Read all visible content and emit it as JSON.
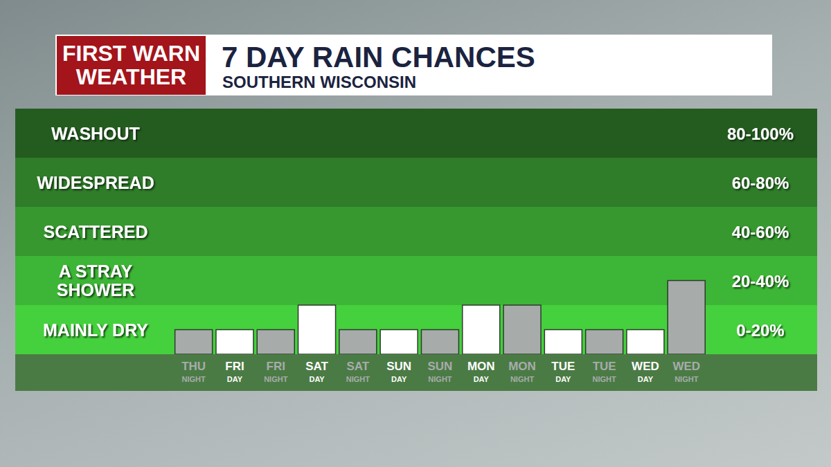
{
  "chart_data": {
    "type": "bar",
    "title": "7 DAY RAIN CHANCES",
    "subtitle": "SOUTHERN WISCONSIN",
    "brand": [
      "FIRST WARN",
      "WEATHER"
    ],
    "categories": [
      "THU NIGHT",
      "FRI DAY",
      "FRI NIGHT",
      "SAT DAY",
      "SAT NIGHT",
      "SUN DAY",
      "SUN NIGHT",
      "MON DAY",
      "MON NIGHT",
      "TUE DAY",
      "TUE NIGHT",
      "WED DAY",
      "WED NIGHT"
    ],
    "values": [
      10,
      10,
      10,
      20,
      10,
      10,
      10,
      20,
      20,
      10,
      10,
      10,
      30
    ],
    "colors": [
      "#a7acab",
      "#ffffff",
      "#a7acab",
      "#ffffff",
      "#a7acab",
      "#ffffff",
      "#a7acab",
      "#ffffff",
      "#a7acab",
      "#ffffff",
      "#a7acab",
      "#ffffff",
      "#a7acab"
    ],
    "ylim": [
      0,
      100
    ],
    "tick_labels": "x",
    "bands": [
      {
        "label": "MAINLY DRY",
        "range_label": "0-20%",
        "from": 0,
        "to": 20,
        "color": "#45d13d"
      },
      {
        "label": "A STRAY SHOWER",
        "range_label": "20-40%",
        "from": 20,
        "to": 40,
        "color": "#3db536"
      },
      {
        "label": "SCATTERED",
        "range_label": "40-60%",
        "from": 40,
        "to": 60,
        "color": "#36982f"
      },
      {
        "label": "WIDESPREAD",
        "range_label": "60-80%",
        "from": 60,
        "to": 80,
        "color": "#2f7c29"
      },
      {
        "label": "WASHOUT",
        "range_label": "80-100%",
        "from": 80,
        "to": 100,
        "color": "#245c20"
      }
    ]
  }
}
